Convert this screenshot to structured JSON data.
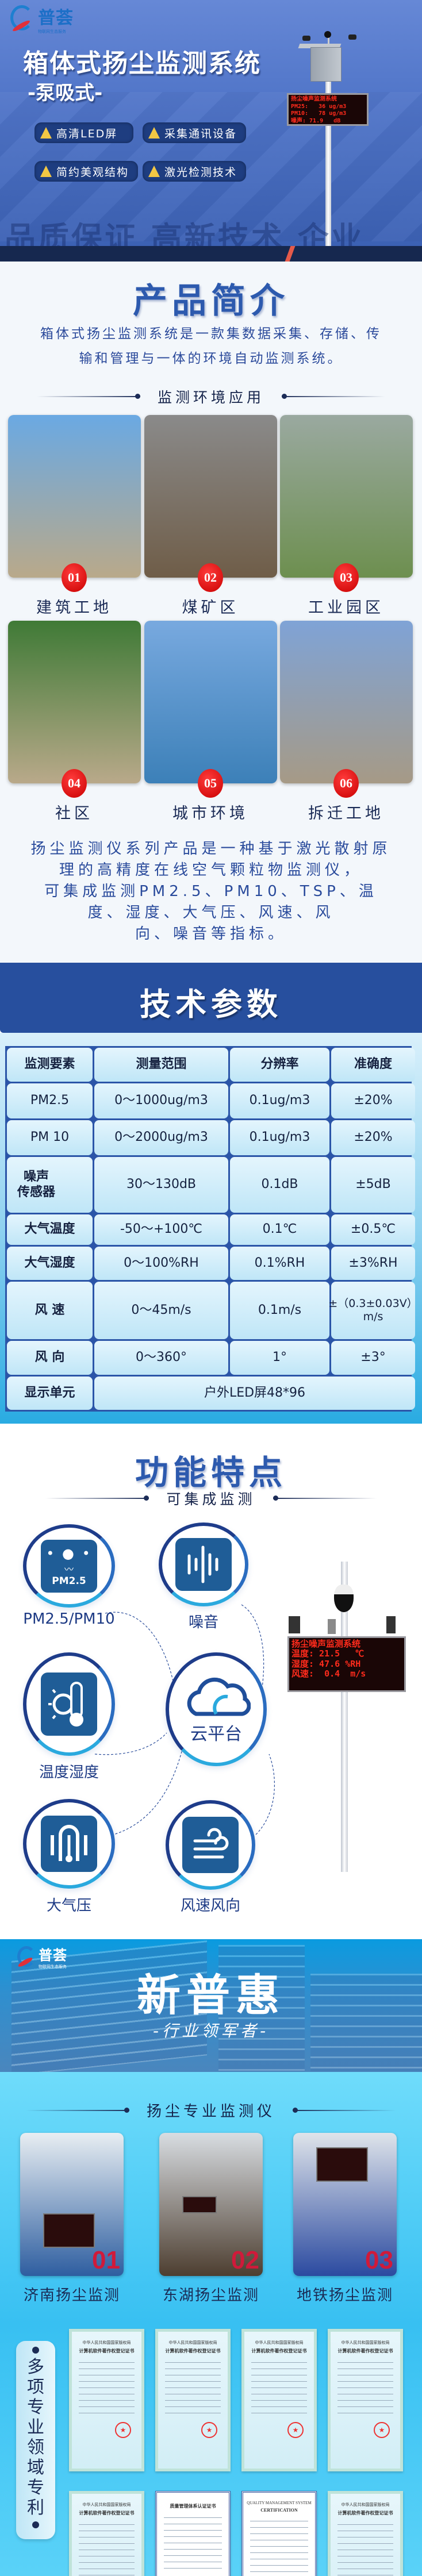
{
  "brand": {
    "name": "普荟",
    "tagline": "物联网生态服务",
    "colors": {
      "primary": "#274f9e",
      "accent": "#e0303a",
      "navy": "#16284f",
      "cyan": "#29abe2"
    }
  },
  "hero": {
    "title": "箱体式扬尘监测系统",
    "subtitle": "-泵吸式-",
    "badges": [
      "高清LED屏",
      "采集通讯设备",
      "简约美观结构",
      "激光检测技术"
    ],
    "watermark": "品质保证 高新技术 企业",
    "led": {
      "title": "扬尘噪声监测系统",
      "lines": [
        "PM25:   36 ug/m3",
        "PM10:   78 ug/m3",
        "噪声: 71.9   dB"
      ]
    }
  },
  "intro": {
    "title": "产品简介",
    "description_lines": [
      "箱体式扬尘监测系统是一款集数据采集、存储、传",
      "输和管理与一体的环境自动监测系统。"
    ],
    "applications_heading": "监测环境应用",
    "applications": [
      {
        "num": "01",
        "label": "建筑工地"
      },
      {
        "num": "02",
        "label": "煤矿区"
      },
      {
        "num": "03",
        "label": "工业园区"
      },
      {
        "num": "04",
        "label": "社区"
      },
      {
        "num": "05",
        "label": "城市环境"
      },
      {
        "num": "06",
        "label": "拆迁工地"
      }
    ],
    "paragraph_lines": [
      "扬尘监测仪系列产品是一种基于激光散射原",
      "理的高精度在线空气颗粒物监测仪，",
      "可集成监测PM2.5、PM10、TSP、温",
      "度、湿度、大气压、风速、风",
      "向、噪音等指标。"
    ]
  },
  "tech": {
    "title": "技术参数",
    "headers": [
      "监测要素",
      "测量范围",
      "分辨率",
      "准确度"
    ],
    "rows": [
      [
        "PM2.5",
        "0～1000ug/m3",
        "0.1ug/m3",
        "±20%"
      ],
      [
        "PM 10",
        "0～2000ug/m3",
        "0.1ug/m3",
        "±20%"
      ],
      [
        "噪声\n传感器",
        "30～130dB",
        "0.1dB",
        "±5dB"
      ],
      [
        "大气温度",
        "-50～+100℃",
        "0.1℃",
        "±0.5℃"
      ],
      [
        "大气湿度",
        "0～100%RH",
        "0.1%RH",
        "±3%RH"
      ],
      [
        "风  速",
        "0～45m/s",
        "0.1m/s",
        "±（0.3±0.03V）m/s"
      ],
      [
        "风  向",
        "0～360°",
        "1°",
        "±3°"
      ]
    ],
    "display_row": {
      "label": "显示单元",
      "value": "户外LED屏48*96"
    }
  },
  "features": {
    "title": "功能特点",
    "subheading": "可集成监测",
    "items": [
      {
        "label": "PM2.5/PM10",
        "icon": "pm25-icon",
        "icon_text": "PM2.5"
      },
      {
        "label": "噪音",
        "icon": "sound-wave-icon"
      },
      {
        "label": "温度湿度",
        "icon": "sun-thermometer-icon"
      },
      {
        "label": "大气压",
        "icon": "pressure-icon"
      },
      {
        "label": "风速风向",
        "icon": "wind-icon"
      }
    ],
    "center": {
      "label": "云平台",
      "icon": "cloud-icon"
    },
    "led": {
      "title": "扬尘噪声监测系统",
      "lines": [
        "温度: 21.5   ℃",
        "湿度: 47.6 %RH",
        "风速:  0.4  m/s"
      ]
    }
  },
  "banner": {
    "title": "新普惠",
    "subtitle": "-行业领军者-"
  },
  "cases": {
    "heading": "扬尘专业监测仪",
    "items": [
      {
        "num": "01",
        "label": "济南扬尘监测"
      },
      {
        "num": "02",
        "label": "东湖扬尘监测"
      },
      {
        "num": "03",
        "label": "地铁扬尘监测"
      }
    ]
  },
  "patents": {
    "label": "多项专业领域专利",
    "certificates": [
      {
        "line1": "中华人民共和国国家版权局",
        "line2": "计算机软件著作权登记证书"
      },
      {
        "line1": "中华人民共和国国家版权局",
        "line2": "计算机软件著作权登记证书"
      },
      {
        "line1": "中华人民共和国国家版权局",
        "line2": "计算机软件著作权登记证书"
      },
      {
        "line1": "中华人民共和国国家版权局",
        "line2": "计算机软件著作权登记证书"
      },
      {
        "line1": "中华人民共和国国家版权局",
        "line2": "计算机软件著作权登记证书"
      },
      {
        "line1": "",
        "line2": "质量管理体系认证证书",
        "white": true
      },
      {
        "line1": "QUALITY MANAGEMENT SYSTEM",
        "line2": "CERTIFICATION",
        "white": true
      },
      {
        "line1": "中华人民共和国国家版权局",
        "line2": "计算机软件著作权登记证书"
      }
    ]
  }
}
